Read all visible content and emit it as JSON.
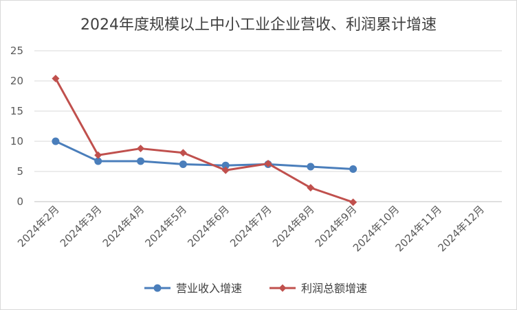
{
  "chart_data": {
    "type": "line",
    "title": "2024年度规模以上中小工业企业营收、利润累计增速",
    "categories": [
      "2024年2月",
      "2024年3月",
      "2024年4月",
      "2024年5月",
      "2024年6月",
      "2024年7月",
      "2024年8月",
      "2024年9月",
      "2024年10月",
      "2024年11月",
      "2024年12月"
    ],
    "ylim": [
      0,
      25
    ],
    "yticks": [
      0,
      5,
      10,
      15,
      20,
      25
    ],
    "grid": true,
    "legend": "bottom",
    "series": [
      {
        "name": "营业收入增速",
        "color": "#4a7ebb",
        "marker": "circle",
        "values": [
          10.0,
          6.7,
          6.7,
          6.2,
          6.0,
          6.2,
          5.8,
          5.4,
          null,
          null,
          null
        ]
      },
      {
        "name": "利润总额增速",
        "color": "#c0504d",
        "marker": "diamond",
        "values": [
          20.4,
          7.7,
          8.8,
          8.1,
          5.2,
          6.3,
          2.3,
          -0.1,
          null,
          null,
          null
        ]
      }
    ]
  }
}
